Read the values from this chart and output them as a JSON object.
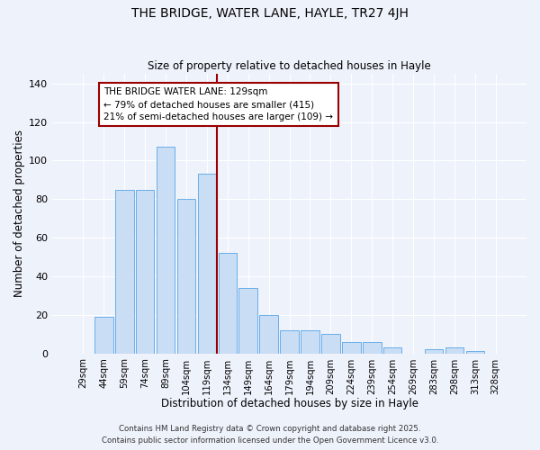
{
  "title": "THE BRIDGE, WATER LANE, HAYLE, TR27 4JH",
  "subtitle": "Size of property relative to detached houses in Hayle",
  "xlabel": "Distribution of detached houses by size in Hayle",
  "ylabel": "Number of detached properties",
  "bar_labels": [
    "29sqm",
    "44sqm",
    "59sqm",
    "74sqm",
    "89sqm",
    "104sqm",
    "119sqm",
    "134sqm",
    "149sqm",
    "164sqm",
    "179sqm",
    "194sqm",
    "209sqm",
    "224sqm",
    "239sqm",
    "254sqm",
    "269sqm",
    "283sqm",
    "298sqm",
    "313sqm",
    "328sqm"
  ],
  "bar_values": [
    0,
    19,
    85,
    85,
    107,
    80,
    93,
    52,
    34,
    20,
    12,
    12,
    10,
    6,
    6,
    3,
    0,
    2,
    3,
    1,
    0
  ],
  "bar_color": "#c9ddf5",
  "bar_edgecolor": "#6aaee8",
  "vline_color": "#990000",
  "ylim": [
    0,
    145
  ],
  "yticks": [
    0,
    20,
    40,
    60,
    80,
    100,
    120,
    140
  ],
  "annotation_text": "THE BRIDGE WATER LANE: 129sqm\n← 79% of detached houses are smaller (415)\n21% of semi-detached houses are larger (109) →",
  "annotation_box_edgecolor": "#990000",
  "footer_line1": "Contains HM Land Registry data © Crown copyright and database right 2025.",
  "footer_line2": "Contains public sector information licensed under the Open Government Licence v3.0.",
  "background_color": "#eef2fb",
  "grid_color": "#ffffff"
}
